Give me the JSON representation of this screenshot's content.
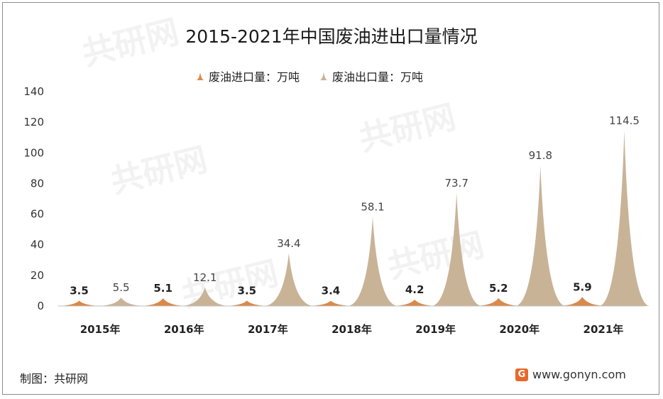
{
  "chart_data": {
    "type": "area",
    "title": "2015-2021年中国废油进出口量情况",
    "categories": [
      "2015年",
      "2016年",
      "2017年",
      "2018年",
      "2019年",
      "2020年",
      "2021年"
    ],
    "series": [
      {
        "name": "废油进口量：万吨",
        "color": "#d9894a",
        "values": [
          3.5,
          5.1,
          3.5,
          3.4,
          4.2,
          5.2,
          5.9
        ]
      },
      {
        "name": "废油出口量：万吨",
        "color": "#c9b397",
        "values": [
          5.5,
          12.1,
          34.4,
          58.1,
          73.7,
          91.8,
          114.5
        ]
      }
    ],
    "ylim": [
      0,
      140
    ],
    "yticks": [
      0,
      20,
      40,
      60,
      80,
      100,
      120,
      140
    ],
    "grid": false,
    "legend": "top"
  },
  "footer": {
    "source": "制图：共研网",
    "site": "www.gonyn.com"
  },
  "watermark": {
    "text": "共研网",
    "url": "www.gonyn.com"
  }
}
